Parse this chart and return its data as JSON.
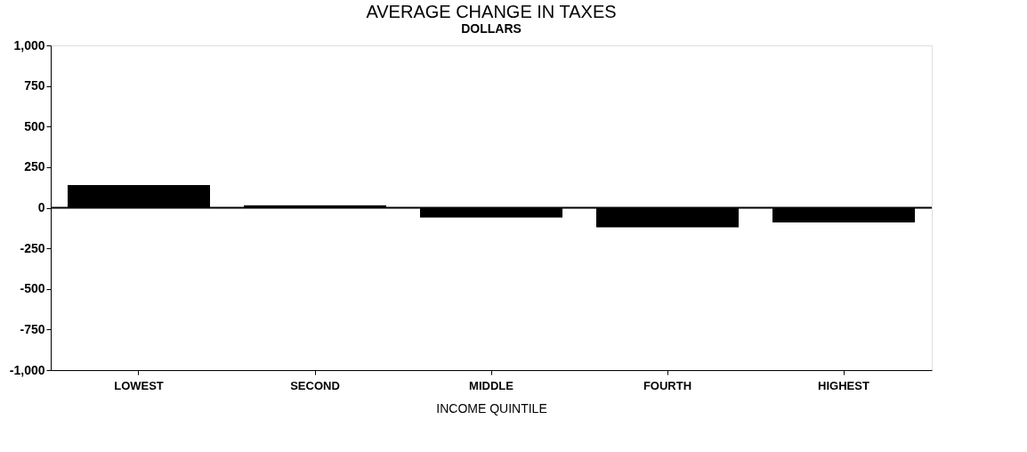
{
  "chart_data": {
    "type": "bar",
    "title": "AVERAGE CHANGE IN TAXES",
    "ylabel": "DOLLARS",
    "xlabel": "INCOME QUINTILE",
    "categories": [
      "LOWEST",
      "SECOND",
      "MIDDLE",
      "FOURTH",
      "HIGHEST"
    ],
    "values": [
      140,
      15,
      -60,
      -120,
      -90
    ],
    "color": "#000000",
    "ylim": [
      -1000,
      1000
    ],
    "yticks": [
      {
        "value": 1000,
        "label": "1,000"
      },
      750,
      500,
      250,
      0,
      -250,
      -500,
      -750,
      {
        "value": -1000,
        "label": "-1,000"
      }
    ],
    "ref_lines": [
      {
        "axis": "y",
        "value": 0
      }
    ],
    "grid": false
  }
}
